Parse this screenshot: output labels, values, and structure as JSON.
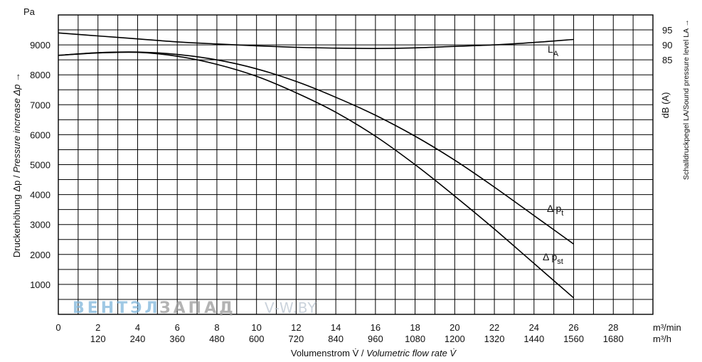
{
  "chart_data": {
    "type": "line",
    "left_axis": {
      "unit": "Pa",
      "label_de": "Druckerhöhung Δp / ",
      "label_en": "Pressure increase  Δp →",
      "range": [
        0,
        10000
      ],
      "ticks": [
        "1000",
        "2000",
        "3000",
        "4000",
        "5000",
        "6000",
        "7000",
        "8000",
        "9000"
      ]
    },
    "right_axis": {
      "unit": "dB (A)",
      "label": "Schalldruckpegel LA/Sound pressure level LA →",
      "ticks": [
        {
          "label": "95",
          "at": 9500
        },
        {
          "label": "90",
          "at": 9000
        },
        {
          "label": "85",
          "at": 8500
        }
      ]
    },
    "x_axis": {
      "range": [
        0,
        30
      ],
      "ticks_min": [
        "0",
        "2",
        "4",
        "6",
        "8",
        "10",
        "12",
        "14",
        "16",
        "18",
        "20",
        "22",
        "24",
        "26",
        "28"
      ],
      "ticks_h": [
        "120",
        "240",
        "360",
        "480",
        "600",
        "720",
        "840",
        "960",
        "1080",
        "1200",
        "1320",
        "1440",
        "1560",
        "1680"
      ],
      "unit_min": "m³/min",
      "unit_h": "m³/h",
      "label_de": "Volumenstrom V̇ / ",
      "label_en": "Volumetric flow rate V̇"
    },
    "series": [
      {
        "name": "LA",
        "label_main": "L",
        "label_sub": "A",
        "x": [
          0,
          2,
          4,
          6,
          8,
          10,
          12,
          14,
          16,
          18,
          20,
          22,
          24,
          26
        ],
        "y": [
          9400,
          9300,
          9200,
          9100,
          9030,
          8970,
          8920,
          8890,
          8880,
          8900,
          8950,
          9000,
          9080,
          9180
        ]
      },
      {
        "name": "Δpt",
        "label_main": "Δ p",
        "label_sub": "t",
        "x": [
          0,
          2,
          4,
          6,
          8,
          10,
          12,
          14,
          16,
          18,
          20,
          22,
          24,
          26
        ],
        "y": [
          8650,
          8740,
          8760,
          8680,
          8500,
          8200,
          7780,
          7250,
          6650,
          5950,
          5150,
          4250,
          3300,
          2350
        ]
      },
      {
        "name": "Δpst",
        "label_main": "Δ p",
        "label_sub": "st",
        "x": [
          0,
          2,
          4,
          6,
          8,
          10,
          12,
          14,
          16,
          18,
          20,
          22,
          24,
          26
        ],
        "y": [
          8650,
          8730,
          8750,
          8620,
          8350,
          7950,
          7400,
          6750,
          5950,
          5000,
          3950,
          2850,
          1700,
          550
        ]
      }
    ]
  },
  "watermark": {
    "part1": "ВЕНТЭЛ",
    "part2": "ЗАПАД",
    "part3": "V-W.BY",
    "color1": "#7fb6dc",
    "color2": "#9a9a9a",
    "color3": "#b9c4cf"
  }
}
